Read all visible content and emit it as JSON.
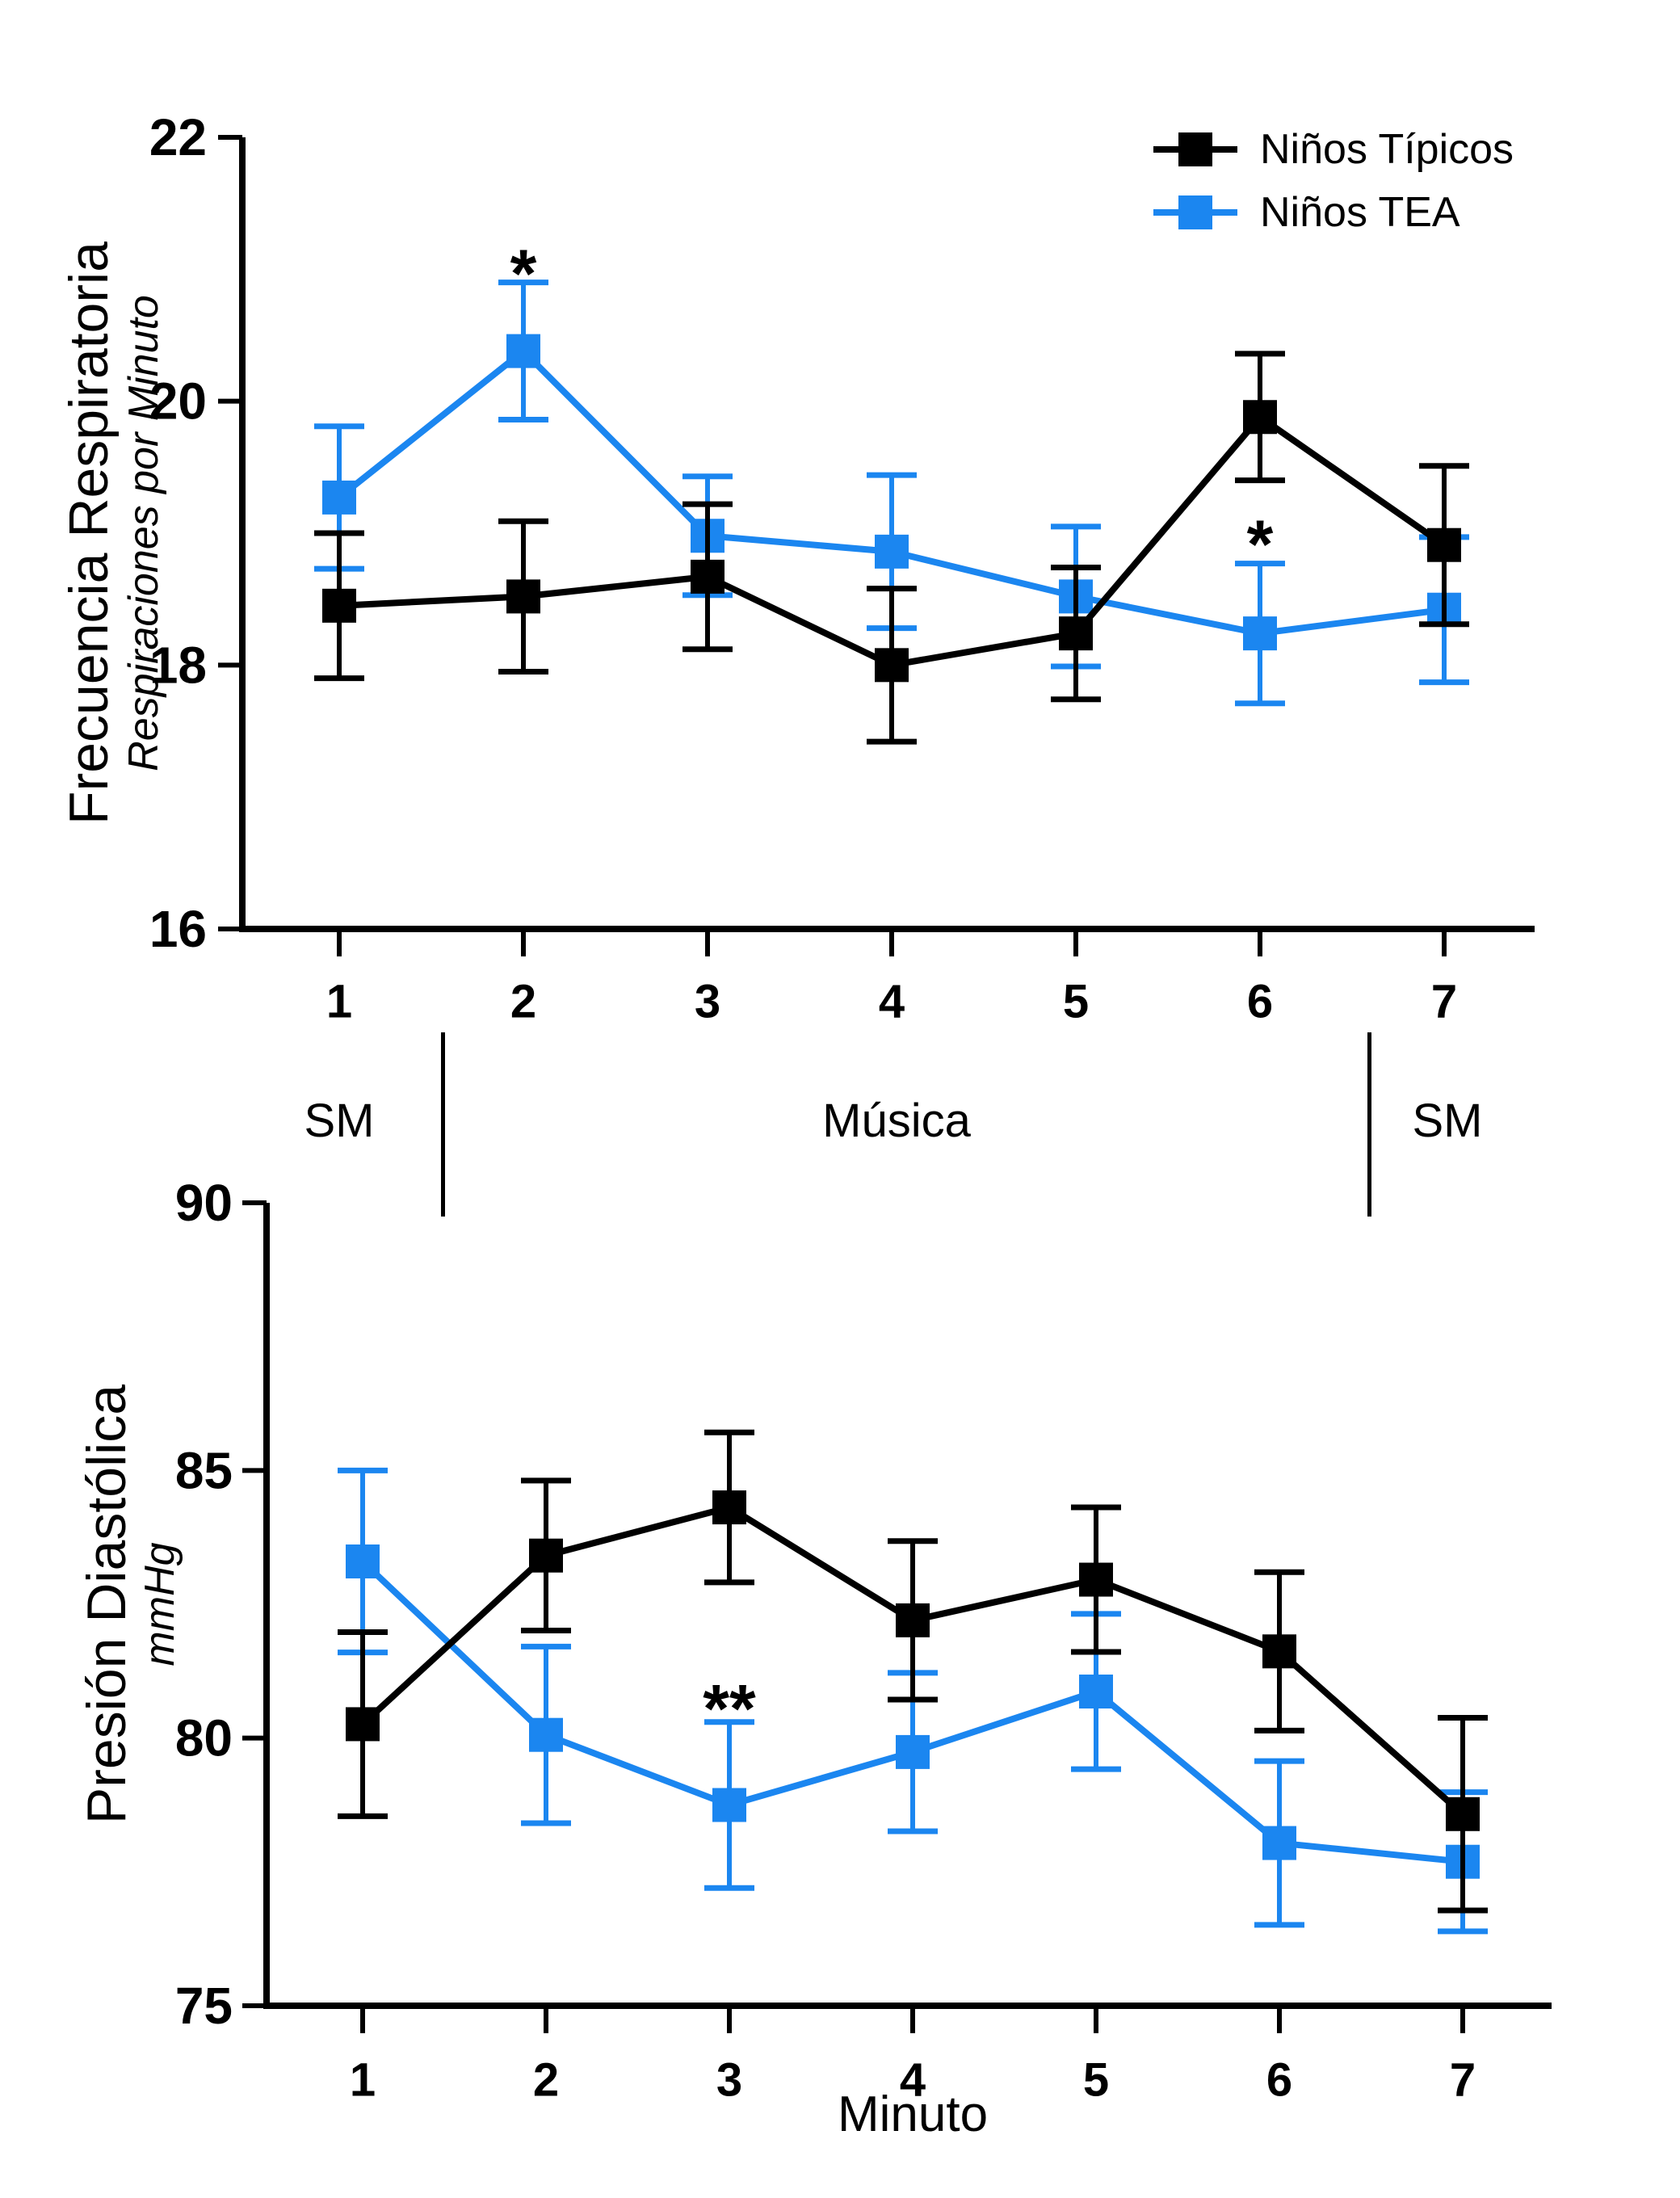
{
  "figure": {
    "background": "#ffffff",
    "colors": {
      "typical": "#000000",
      "tea": "#1b86f0"
    },
    "legend": [
      {
        "id": "typical",
        "label": "Niños Típicos",
        "color": "#000000"
      },
      {
        "id": "tea",
        "label": "Niños TEA",
        "color": "#1b86f0"
      }
    ],
    "section_labels": {
      "left": "SM",
      "middle": "Música",
      "right": "SM"
    }
  },
  "chart_data": [
    {
      "id": "respiratory",
      "type": "line",
      "title": "Frecuencia Respiratoria",
      "subtitle": "Respiraciones por Minuto",
      "xlabel": "",
      "categories": [
        1,
        2,
        3,
        4,
        5,
        6,
        7
      ],
      "ylim": [
        16,
        22
      ],
      "yticks": [
        16,
        18,
        20,
        22
      ],
      "grid": false,
      "legend_position": "top-right",
      "series": [
        {
          "id": "typical",
          "name": "Niños Típicos",
          "color": "#000000",
          "values": [
            18.45,
            18.52,
            18.67,
            18.0,
            18.24,
            19.88,
            18.91
          ],
          "errors": [
            0.55,
            0.57,
            0.55,
            0.58,
            0.5,
            0.48,
            0.6
          ]
        },
        {
          "id": "tea",
          "name": "Niños TEA",
          "color": "#1b86f0",
          "values": [
            19.27,
            20.38,
            18.98,
            18.86,
            18.52,
            18.24,
            18.42
          ],
          "errors": [
            0.54,
            0.52,
            0.45,
            0.58,
            0.53,
            0.53,
            0.55
          ]
        }
      ],
      "annotations": [
        {
          "x": 2,
          "value": 21.15,
          "text": "*"
        },
        {
          "x": 6,
          "value": 19.1,
          "text": "*"
        }
      ]
    },
    {
      "id": "diastolic",
      "type": "line",
      "title": "Presión Diastólica",
      "subtitle": "mmHg",
      "xlabel": "Minuto",
      "categories": [
        1,
        2,
        3,
        4,
        5,
        6,
        7
      ],
      "ylim": [
        75,
        90
      ],
      "yticks": [
        75,
        80,
        85,
        90
      ],
      "grid": false,
      "legend_position": "none",
      "series": [
        {
          "id": "typical",
          "name": "Niños Típicos",
          "color": "#000000",
          "values": [
            80.26,
            83.41,
            84.31,
            82.2,
            82.96,
            81.62,
            78.58
          ],
          "errors": [
            1.72,
            1.4,
            1.4,
            1.48,
            1.35,
            1.48,
            1.8
          ]
        },
        {
          "id": "tea",
          "name": "Niños TEA",
          "color": "#1b86f0",
          "values": [
            83.3,
            80.06,
            78.75,
            79.74,
            80.87,
            78.04,
            77.69
          ],
          "errors": [
            1.7,
            1.65,
            1.55,
            1.48,
            1.45,
            1.53,
            1.3
          ]
        }
      ],
      "annotations": [
        {
          "x": 3,
          "value": 81.0,
          "text": "**"
        }
      ]
    }
  ]
}
